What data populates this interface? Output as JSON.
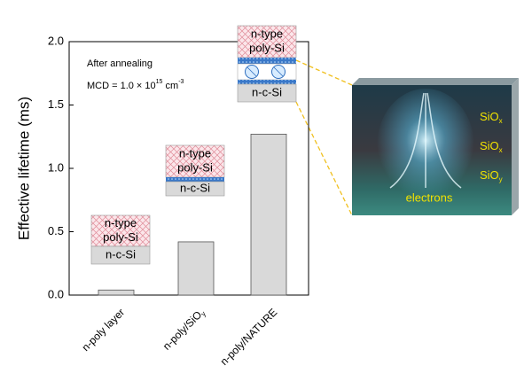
{
  "chart_data": {
    "type": "bar",
    "ylabel": "Effective lifetime (ms)",
    "categories": [
      "n-poly layer",
      "n-poly/SiO",
      "n-poly/NATURE"
    ],
    "category_subscripts": [
      null,
      "y",
      null
    ],
    "values": [
      0.04,
      0.42,
      1.27
    ],
    "color": "#d9d9d9",
    "ylim": [
      0,
      2
    ],
    "yticks": [
      {
        "value": 0,
        "label": "0.0"
      },
      {
        "value": 0.5,
        "label": "0.5"
      },
      {
        "value": 1,
        "label": "1.0"
      },
      {
        "value": 1.5,
        "label": "1.5"
      },
      {
        "value": 2,
        "label": "2.0"
      }
    ],
    "annotation": "After annealing",
    "mcd": {
      "base": "MCD = 1.0 × 10",
      "exp": "15",
      "unit": " cm",
      "unit_exp": "-3"
    },
    "insets": [
      {
        "top": [
          "n-type",
          "poly-Si"
        ],
        "bottom": "n-c-Si"
      },
      {
        "top": [
          "n-type",
          "poly-Si"
        ],
        "bottom": "n-c-Si"
      },
      {
        "top": [
          "n-type",
          "poly-Si"
        ],
        "bottom": "n-c-Si"
      }
    ],
    "illustration": {
      "layers": [
        {
          "text": "SiO",
          "sub": "x"
        },
        {
          "text": "SiO",
          "sub": "x"
        },
        {
          "text": "SiO",
          "sub": "y"
        }
      ],
      "caption": "electrons"
    }
  }
}
